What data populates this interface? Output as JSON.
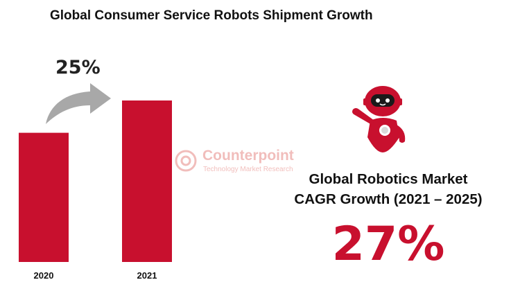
{
  "title": "Global Consumer Service Robots Shipment Growth",
  "colors": {
    "bar": "#c8102e",
    "arrow": "#a8a8a8",
    "accent": "#c8102e",
    "watermark": "#d8463f"
  },
  "chart_data": {
    "type": "bar",
    "categories": [
      "2020",
      "2021"
    ],
    "values": [
      100,
      125
    ],
    "ylim": [
      0,
      125
    ],
    "grid": false,
    "annotations": [
      {
        "type": "growth-arrow",
        "from": "2020",
        "to": "2021",
        "label": "25%"
      }
    ]
  },
  "watermark": {
    "name": "Counterpoint",
    "tagline": "Technology Market Research"
  },
  "callout": {
    "line1": "Global Robotics Market",
    "line2": "CAGR Growth (2021 – 2025)",
    "value": "27%"
  },
  "illustration": {
    "icon": "robot-icon"
  }
}
